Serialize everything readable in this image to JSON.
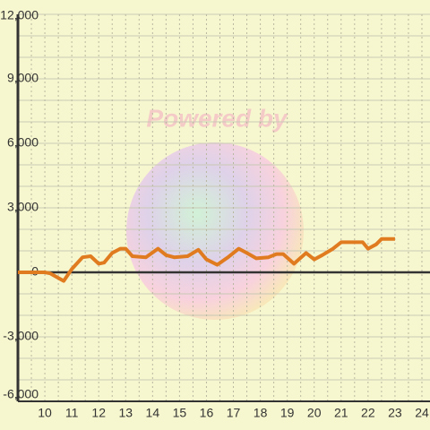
{
  "chart_data": {
    "type": "line",
    "watermark": "Powered by",
    "x": [
      9.0,
      10.0,
      10.2,
      10.7,
      11.0,
      11.4,
      11.7,
      12.0,
      12.2,
      12.5,
      12.8,
      13.0,
      13.25,
      13.75,
      14.2,
      14.5,
      14.8,
      15.3,
      15.7,
      16.0,
      16.4,
      16.8,
      17.2,
      17.5,
      17.85,
      18.3,
      18.6,
      18.85,
      19.25,
      19.7,
      20.0,
      20.3,
      20.7,
      21.0,
      21.8,
      22.0,
      22.3,
      22.5,
      23.0
    ],
    "series": [
      {
        "color": "#e07b20",
        "values": [
          0,
          0,
          -50,
          -400,
          150,
          700,
          750,
          400,
          450,
          900,
          1100,
          1100,
          750,
          700,
          1100,
          800,
          700,
          750,
          1050,
          600,
          350,
          700,
          1100,
          900,
          650,
          700,
          850,
          850,
          400,
          900,
          600,
          800,
          1100,
          1400,
          1400,
          1100,
          1300,
          1550,
          1550
        ]
      }
    ],
    "xlim": [
      9,
      24.3
    ],
    "xticks": [
      10,
      11,
      12,
      13,
      14,
      15,
      16,
      17,
      18,
      19,
      20,
      21,
      22,
      23,
      24
    ],
    "x_gridlines": [
      9.5,
      10,
      10.5,
      11,
      11.5,
      12,
      12.5,
      13,
      13.5,
      14,
      14.5,
      15,
      15.5,
      16,
      16.5,
      17,
      17.5,
      18,
      18.5,
      19,
      19.5,
      20,
      20.5,
      21,
      21.5,
      22,
      22.5,
      23,
      23.5,
      24
    ],
    "ylim": [
      -6000,
      12000
    ],
    "yticks": [
      {
        "value": 12000,
        "label": "12,000"
      },
      {
        "value": 9000,
        "label": "9,000"
      },
      {
        "value": 6000,
        "label": "6,000"
      },
      {
        "value": 3000,
        "label": "3,000"
      },
      0,
      {
        "value": -3000,
        "label": "-3,000"
      },
      {
        "value": -6000,
        "label": "-6,000"
      }
    ],
    "y_gridlines": [
      -5000,
      -4000,
      -3000,
      -2000,
      -1000,
      1000,
      2000,
      3000,
      4000,
      5000,
      6000,
      7000,
      8000,
      9000,
      10000,
      11000,
      12000
    ],
    "grid": true
  }
}
